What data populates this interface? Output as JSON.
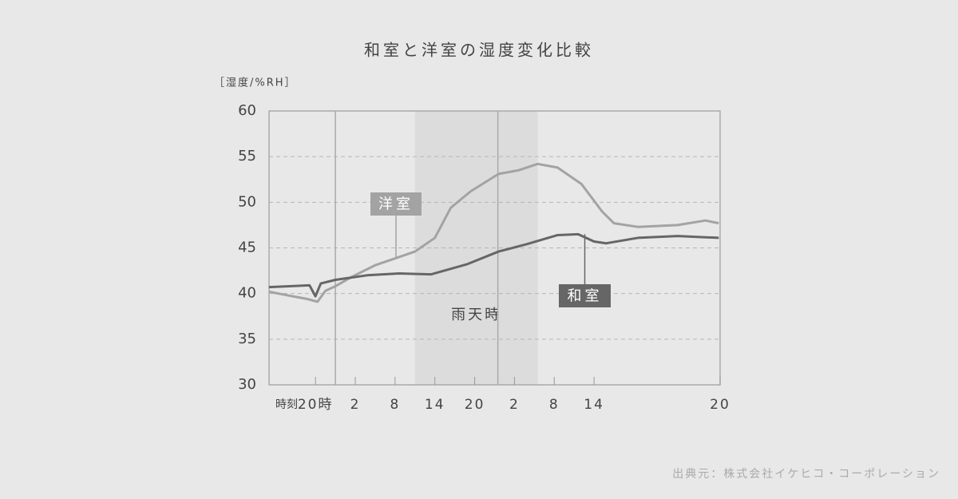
{
  "chart_data": {
    "type": "line",
    "title": "和室と洋室の湿度変化比較",
    "y_label": "［湿度/%RH］",
    "x_label": "時刻",
    "source": "出典元：株式会社イケヒコ・コーポレーション",
    "xlim": [
      0,
      68
    ],
    "ylim": [
      30,
      60
    ],
    "yticks": [
      30,
      35,
      40,
      45,
      50,
      55,
      60
    ],
    "xticks": [
      {
        "value": 7,
        "label": "20時"
      },
      {
        "value": 13,
        "label": "2"
      },
      {
        "value": 19,
        "label": "8"
      },
      {
        "value": 25,
        "label": "14"
      },
      {
        "value": 31,
        "label": "20"
      },
      {
        "value": 37,
        "label": "2"
      },
      {
        "value": 43,
        "label": "8"
      },
      {
        "value": 49,
        "label": "14"
      },
      {
        "value": 68,
        "label": "20"
      }
    ],
    "grid": true,
    "day_lines": [
      10,
      34.5
    ],
    "rain_region": {
      "label": "雨天時",
      "range": [
        22,
        40.5
      ]
    },
    "series": [
      {
        "name": "洋室",
        "color": "#a3a3a3",
        "x": [
          0,
          2.8,
          5.8,
          7.3,
          8.5,
          10,
          12.4,
          16,
          19.6,
          22,
          25,
          27.4,
          30.4,
          34.6,
          37.6,
          40.5,
          43.5,
          47.1,
          50.2,
          52,
          55.6,
          61.6,
          65.8,
          67.8
        ],
        "values": [
          40.2,
          39.8,
          39.4,
          39.1,
          40.3,
          40.8,
          41.8,
          43.1,
          44.0,
          44.6,
          46.1,
          49.4,
          51.2,
          53.1,
          53.5,
          54.2,
          53.8,
          52.0,
          49.0,
          47.7,
          47.3,
          47.5,
          48.0,
          47.7
        ]
      },
      {
        "name": "和室",
        "color": "#666666",
        "x": [
          0,
          6.1,
          7,
          7.8,
          10,
          14.8,
          19.6,
          24.4,
          29.8,
          34.6,
          38.8,
          43.5,
          46.6,
          49,
          50.8,
          55.6,
          61.6,
          67.8
        ],
        "values": [
          40.7,
          40.9,
          39.7,
          41.1,
          41.5,
          42.0,
          42.2,
          42.1,
          43.2,
          44.6,
          45.4,
          46.4,
          46.5,
          45.7,
          45.5,
          46.1,
          46.3,
          46.1
        ]
      }
    ]
  }
}
